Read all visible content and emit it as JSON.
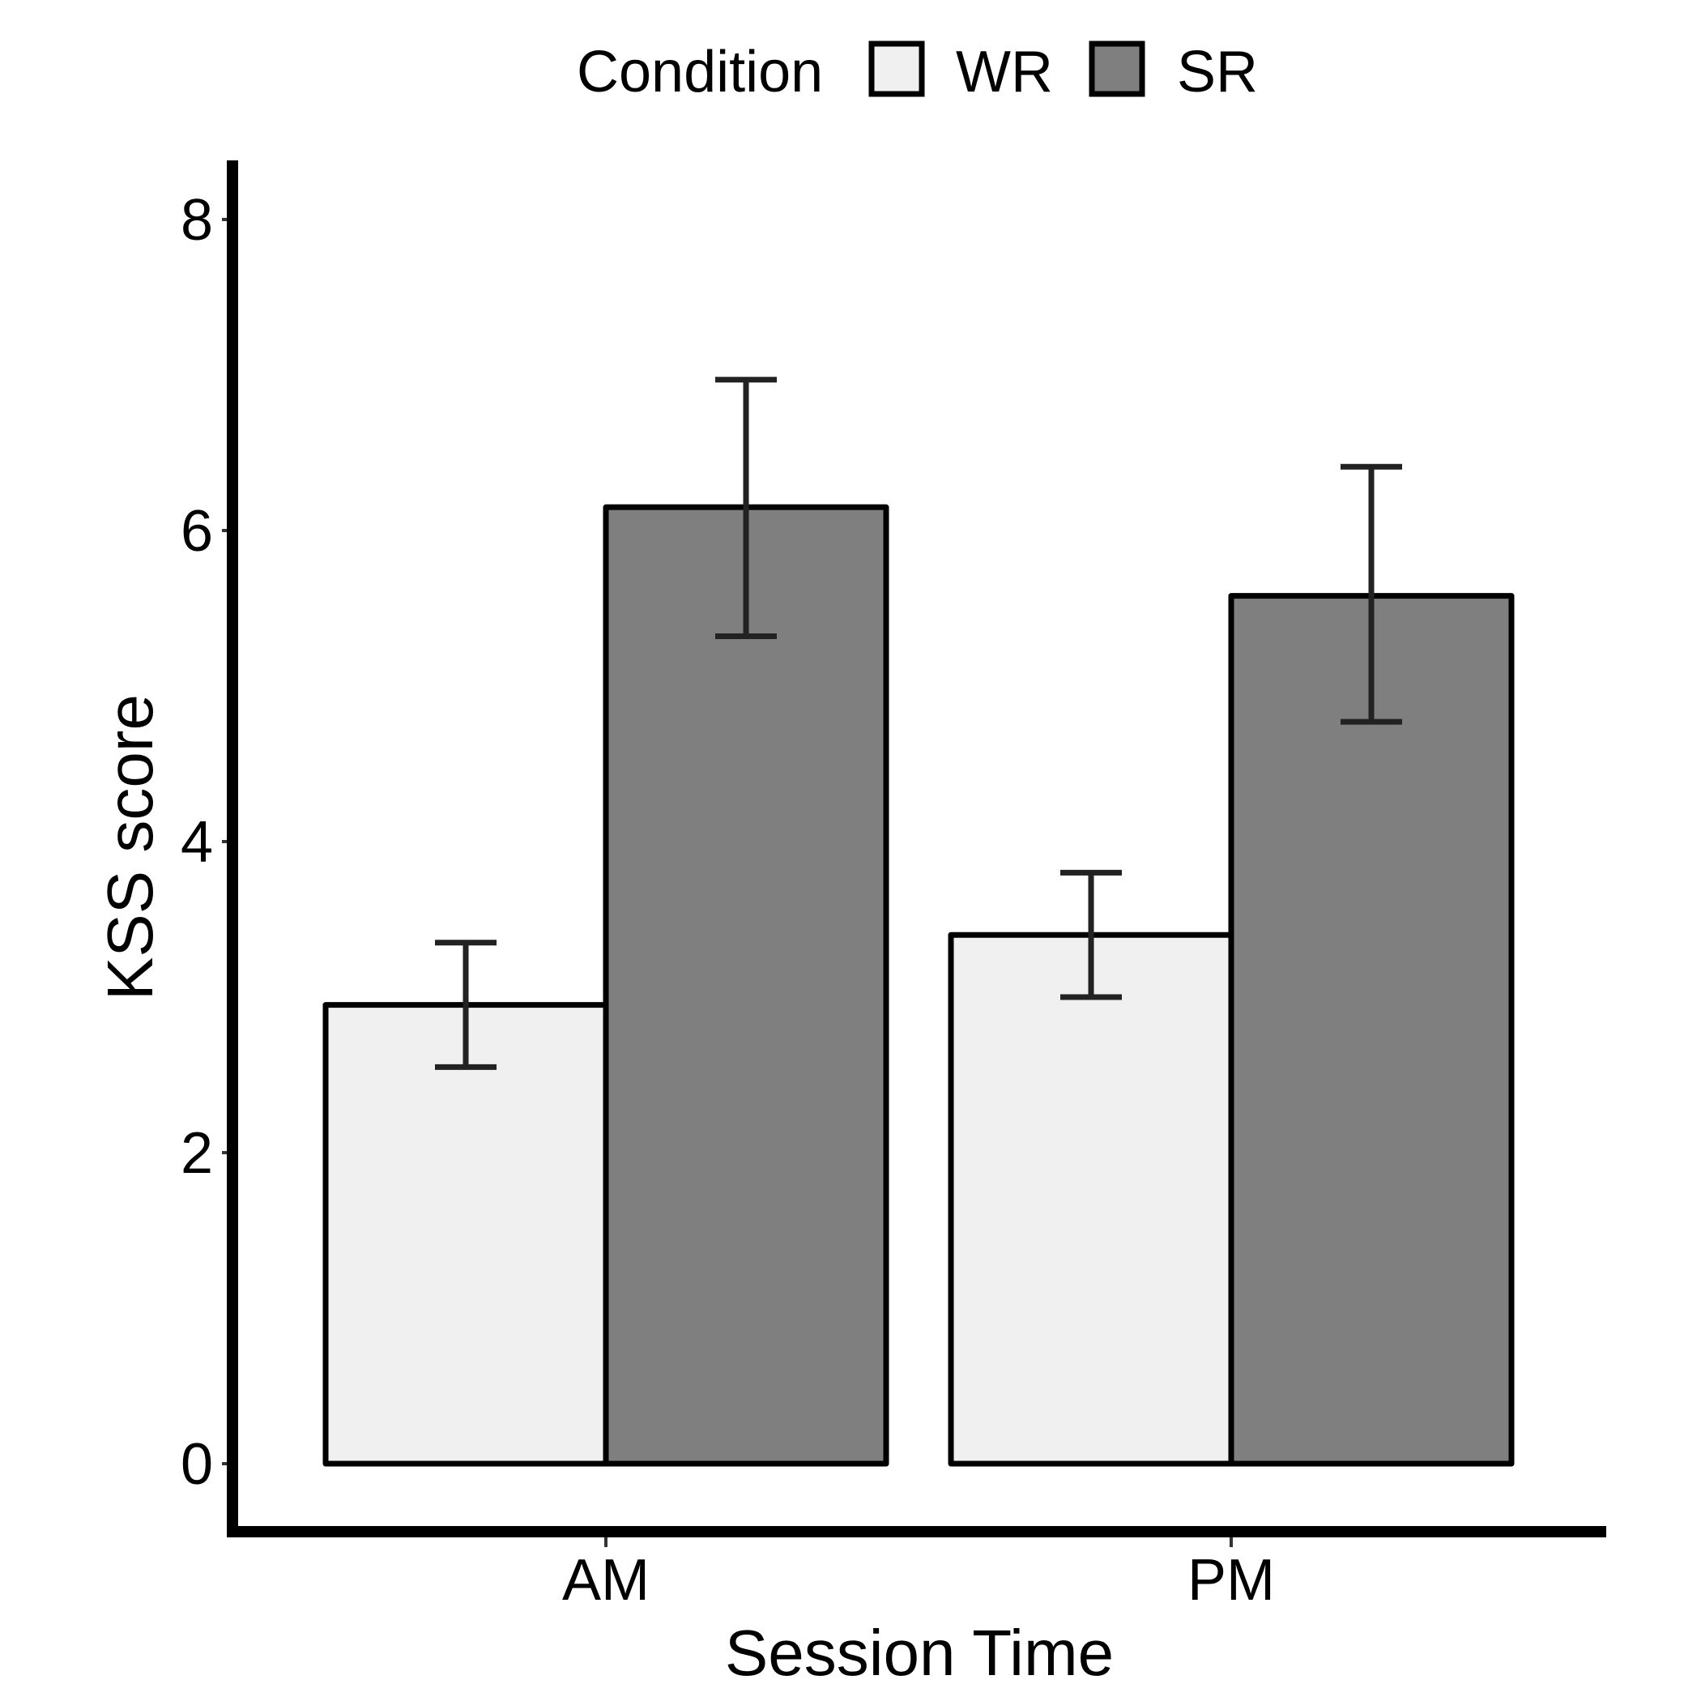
{
  "chart_data": {
    "type": "bar",
    "xlabel": "Session Time",
    "ylabel": "KSS score",
    "categories": [
      "AM",
      "PM"
    ],
    "legend": {
      "title": "Condition",
      "position": "top"
    },
    "series": [
      {
        "name": "WR",
        "color": "#f0f0f0",
        "values": [
          2.95,
          3.4
        ],
        "error_low": [
          2.55,
          3.0
        ],
        "error_high": [
          3.35,
          3.8
        ]
      },
      {
        "name": "SR",
        "color": "#7f7f7f",
        "values": [
          6.15,
          5.58
        ],
        "error_low": [
          5.32,
          4.77
        ],
        "error_high": [
          6.97,
          6.41
        ]
      }
    ],
    "yticks": [
      "0",
      "2",
      "4",
      "6",
      "8"
    ],
    "ylim": [
      -0.38,
      8.38
    ],
    "grid": false
  }
}
